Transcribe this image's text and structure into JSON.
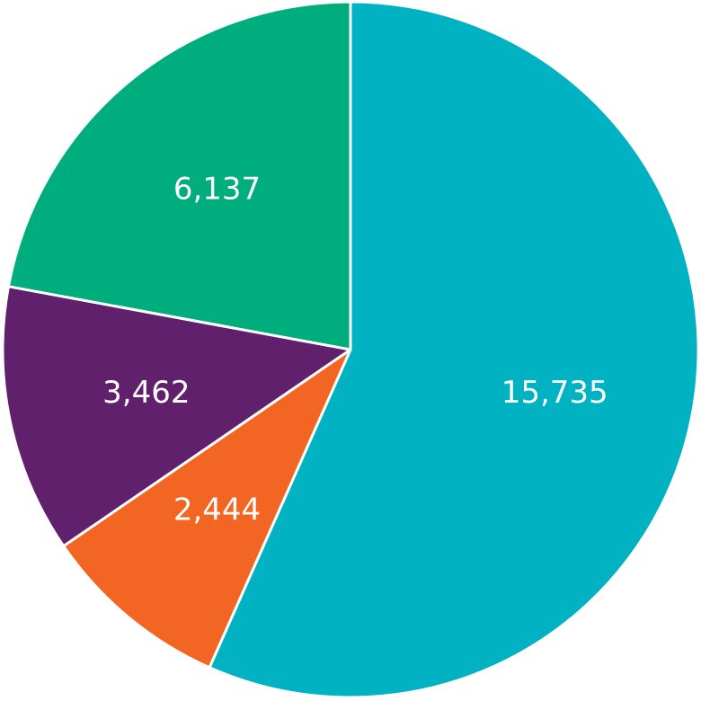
{
  "chart_data": {
    "type": "pie",
    "title": "",
    "slices": [
      {
        "value": 15735,
        "label": "15,735",
        "color": "#00b2c2"
      },
      {
        "value": 2444,
        "label": "2,444",
        "color": "#f26522"
      },
      {
        "value": 3462,
        "label": "3,462",
        "color": "#61206b"
      },
      {
        "value": 6137,
        "label": "6,137",
        "color": "#00ad7c"
      }
    ],
    "start_direction": "top",
    "order": "clockwise",
    "legend": "none"
  }
}
